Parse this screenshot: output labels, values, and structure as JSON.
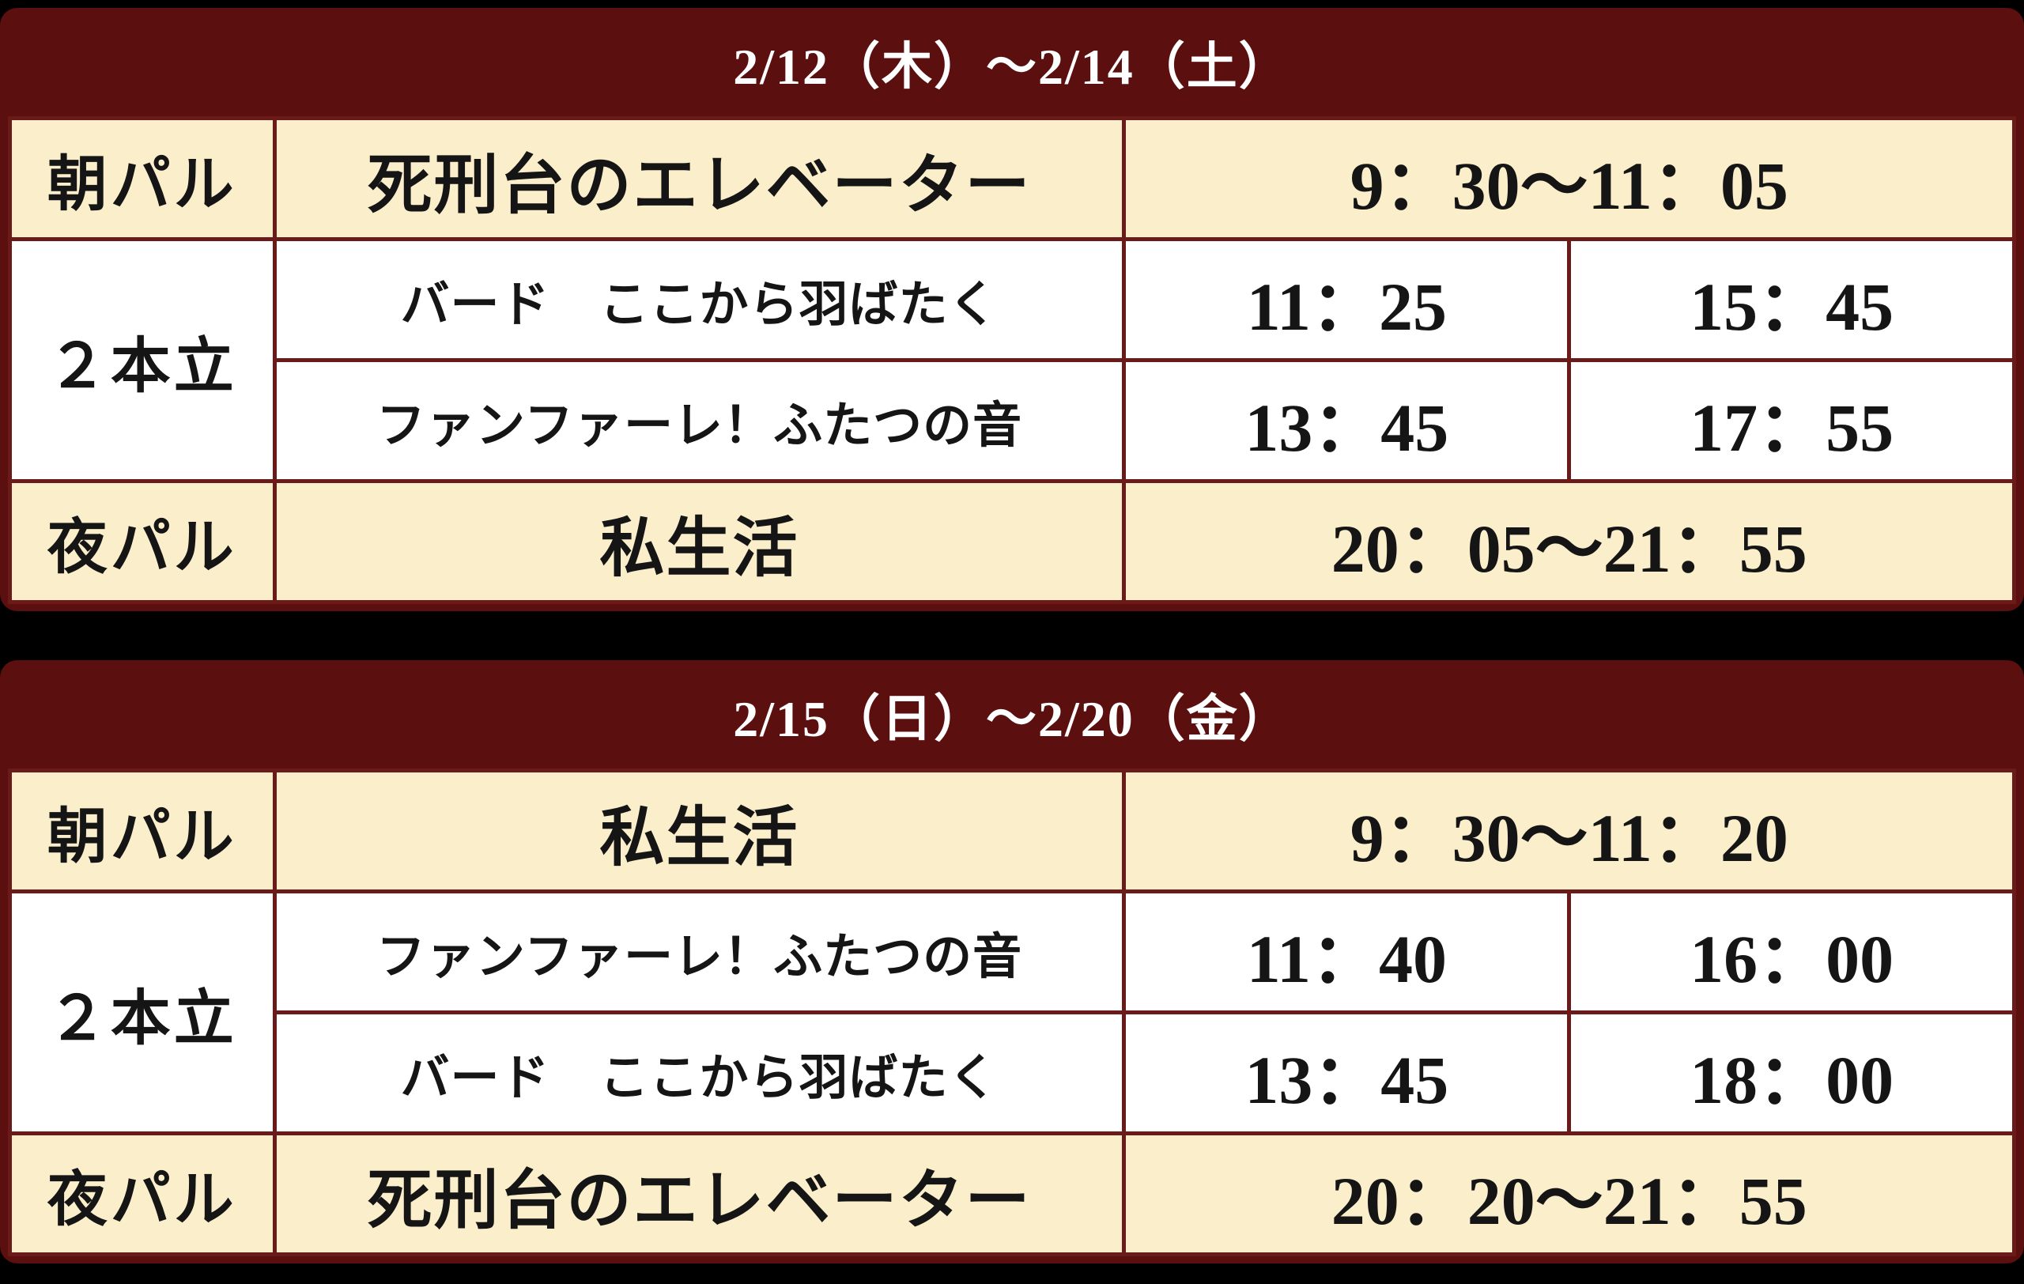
{
  "colors": {
    "page_background": "#000000",
    "header_background": "#5B0F0F",
    "header_text": "#FFFFFF",
    "grid_border": "#6B1A1A",
    "row_cream": "#FBEECB",
    "row_white": "#FFFFFF",
    "cell_text": "#151515"
  },
  "tables": [
    {
      "header": "2/12（木）～2/14（土）",
      "rows": {
        "morning": {
          "slot": "朝パル",
          "title": "死刑台のエレベーター",
          "time": "9：30～11：05"
        },
        "double_slot": "２本立",
        "double_a": {
          "title": "バード　ここから羽ばたく",
          "time1": "11：25",
          "time2": "15：45"
        },
        "double_b": {
          "title": "ファンファーレ！ふたつの音",
          "time1": "13：45",
          "time2": "17：55"
        },
        "evening": {
          "slot": "夜パル",
          "title": "私生活",
          "time": "20：05～21：55"
        }
      }
    },
    {
      "header": "2/15（日）～2/20（金）",
      "rows": {
        "morning": {
          "slot": "朝パル",
          "title": "私生活",
          "time": "9：30～11：20"
        },
        "double_slot": "２本立",
        "double_a": {
          "title": "ファンファーレ！ふたつの音",
          "time1": "11：40",
          "time2": "16：00"
        },
        "double_b": {
          "title": "バード　ここから羽ばたく",
          "time1": "13：45",
          "time2": "18：00"
        },
        "evening": {
          "slot": "夜パル",
          "title": "死刑台のエレベーター",
          "time": "20：20～21：55"
        }
      }
    }
  ]
}
